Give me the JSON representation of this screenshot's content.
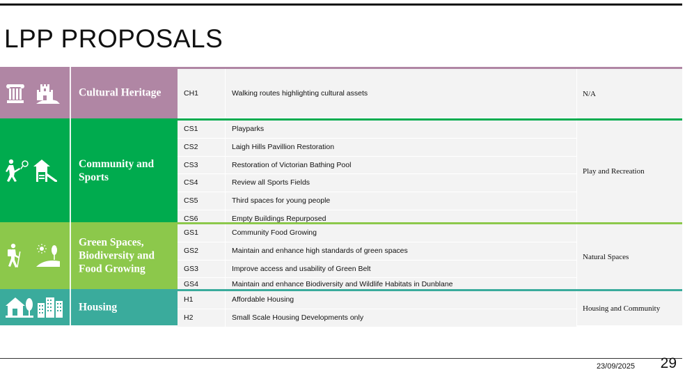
{
  "page": {
    "title": "LPP PROPOSALS"
  },
  "colors": {
    "cultural": "#b086a4",
    "community": "#00ab4e",
    "green": "#8cc84b",
    "housing": "#3aab9c"
  },
  "sections": [
    {
      "key": "cultural",
      "category": "Cultural Heritage",
      "icons": [
        "column-icon",
        "castle-icon"
      ],
      "theme": "N/A",
      "rows": [
        {
          "code": "CH1",
          "desc": "Walking routes highlighting cultural assets"
        }
      ]
    },
    {
      "key": "community",
      "category": "Community and Sports",
      "icons": [
        "tennis-player-icon",
        "playground-icon"
      ],
      "theme": "Play and Recreation",
      "rows": [
        {
          "code": "CS1",
          "desc": "Playparks"
        },
        {
          "code": "CS2",
          "desc": "Laigh Hills Pavillion Restoration"
        },
        {
          "code": "CS3",
          "desc": "Restoration of Victorian Bathing Pool"
        },
        {
          "code": "CS4",
          "desc": "Review all Sports Fields"
        },
        {
          "code": "CS5",
          "desc": "Third spaces for young people"
        },
        {
          "code": "CS6",
          "desc": "Empty Buildings Repurposed"
        }
      ]
    },
    {
      "key": "green",
      "category": "Green Spaces, Biodiversity and Food Growing",
      "icons": [
        "hiker-icon",
        "landscape-icon"
      ],
      "theme": "Natural Spaces",
      "rows": [
        {
          "code": "GS1",
          "desc": "Community Food Growing"
        },
        {
          "code": "GS2",
          "desc": "Maintain and enhance high standards of green spaces"
        },
        {
          "code": "GS3",
          "desc": "Improve access and usability of Green Belt"
        },
        {
          "code": "GS4",
          "desc": "Maintain and enhance Biodiversity and Wildlife Habitats in Dunblane"
        }
      ]
    },
    {
      "key": "housing",
      "category": "Housing",
      "icons": [
        "house-icon",
        "buildings-icon"
      ],
      "theme": "Housing and Community",
      "rows": [
        {
          "code": "H1",
          "desc": "Affordable Housing"
        },
        {
          "code": "H2",
          "desc": "Small Scale Housing Developments only"
        }
      ]
    }
  ],
  "footer": {
    "date": "23/09/2025",
    "page_number": "29"
  }
}
